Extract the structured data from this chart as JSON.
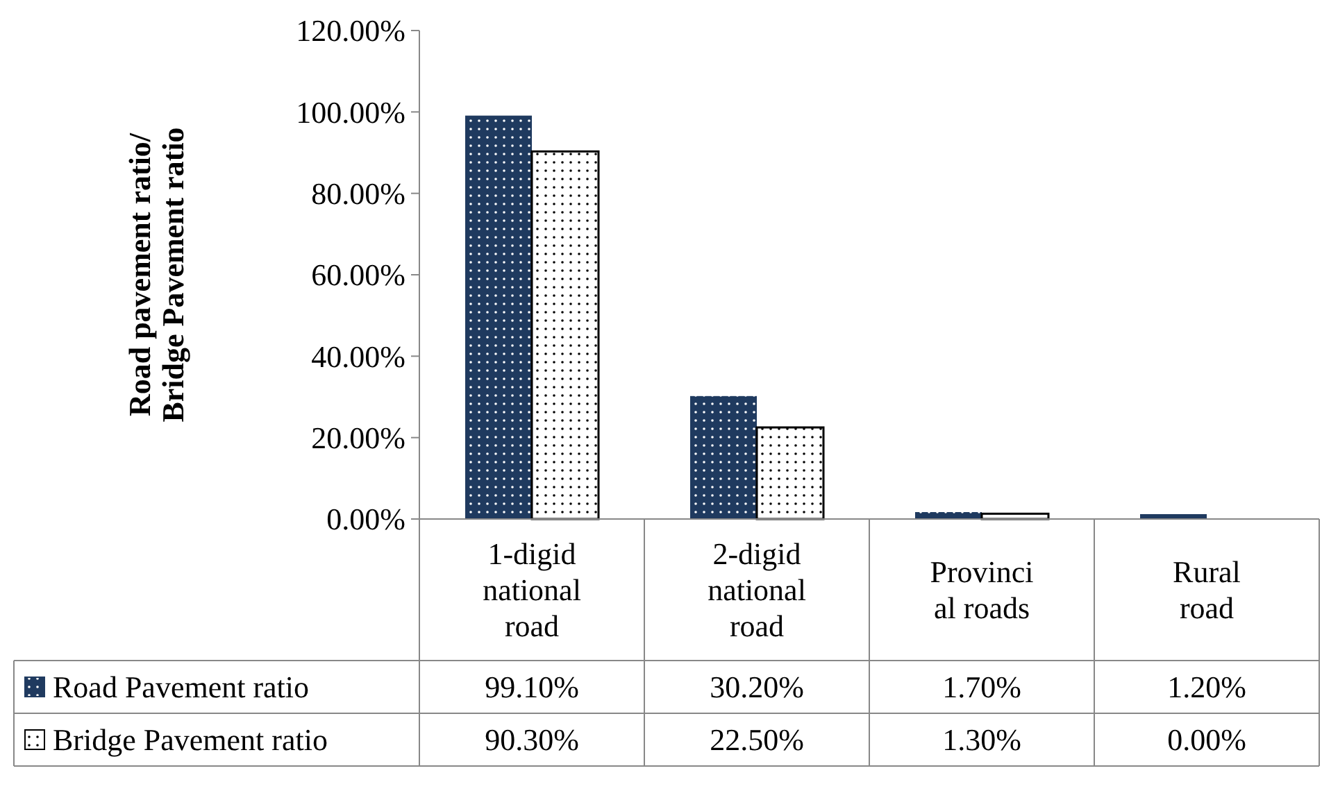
{
  "chart_data": {
    "type": "bar",
    "ylabel": "Road pavement ratio/\nBridge  Pavement ratio",
    "categories": [
      "1-digid national road",
      "2-digid national road",
      "Provinci al roads",
      "Rural road"
    ],
    "series": [
      {
        "name": "Road Pavement ratio",
        "color": "#1f3a5f",
        "values": [
          99.1,
          30.2,
          1.7,
          1.2
        ],
        "value_labels": [
          "99.10%",
          "30.20%",
          "1.70%",
          "1.20%"
        ]
      },
      {
        "name": "Bridge Pavement ratio",
        "color": "#ffffff",
        "values": [
          90.3,
          22.5,
          1.3,
          0
        ],
        "value_labels": [
          "90.30%",
          "22.50%",
          "1.30%",
          "0.00%"
        ]
      }
    ],
    "ylim": [
      0,
      120
    ],
    "yticks": [
      {
        "value": 0,
        "label": "0.00%"
      },
      {
        "value": 20,
        "label": "20.00%"
      },
      {
        "value": 40,
        "label": "40.00%"
      },
      {
        "value": 60,
        "label": "60.00%"
      },
      {
        "value": 80,
        "label": "80.00%"
      },
      {
        "value": 100,
        "label": "100.00%"
      },
      {
        "value": 120,
        "label": "120.00%"
      }
    ],
    "grid": false,
    "legend": "bottom"
  }
}
